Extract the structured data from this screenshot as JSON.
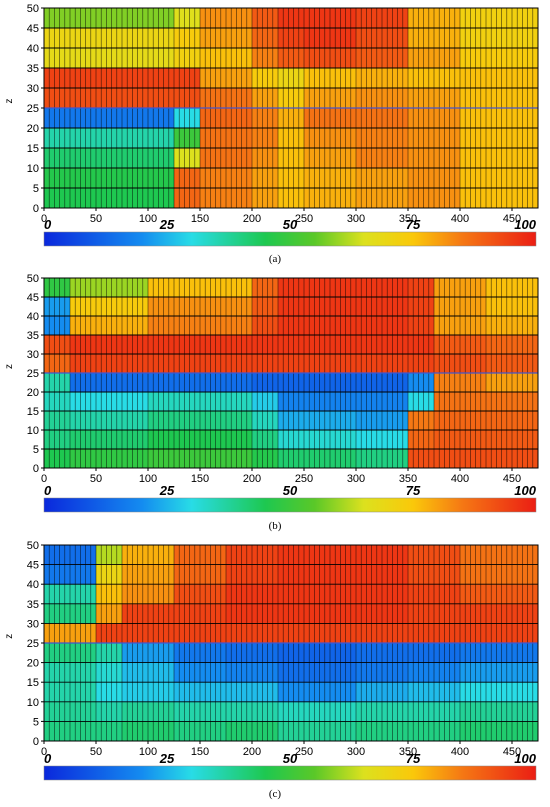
{
  "chart_data": [
    {
      "type": "heatmap",
      "caption": "(a)",
      "ylabel": "z",
      "xlim": [
        0,
        475
      ],
      "ylim": [
        0,
        50
      ],
      "x_ticks": [
        "0",
        "50",
        "100",
        "150",
        "200",
        "250",
        "300",
        "350",
        "400",
        "450"
      ],
      "y_ticks": [
        "0",
        "5",
        "10",
        "15",
        "20",
        "25",
        "30",
        "35",
        "40",
        "45",
        "50"
      ],
      "colorbar": {
        "range": [
          0,
          100
        ],
        "ticks": [
          "0",
          "25",
          "50",
          "75",
          "100"
        ]
      },
      "grid": "on",
      "x_bins": [
        0,
        125,
        150,
        200,
        225,
        250,
        300,
        350,
        400,
        475
      ],
      "rows": [
        {
          "z": [
            0,
            5
          ],
          "values": [
            45,
            88,
            84,
            80,
            76,
            78,
            80,
            82,
            76
          ]
        },
        {
          "z": [
            5,
            10
          ],
          "values": [
            46,
            88,
            84,
            80,
            76,
            78,
            80,
            82,
            76
          ]
        },
        {
          "z": [
            10,
            15
          ],
          "values": [
            42,
            65,
            86,
            82,
            76,
            80,
            84,
            82,
            76
          ]
        },
        {
          "z": [
            15,
            20
          ],
          "values": [
            36,
            50,
            86,
            84,
            76,
            82,
            84,
            82,
            76
          ]
        },
        {
          "z": [
            20,
            25
          ],
          "values": [
            16,
            30,
            88,
            84,
            78,
            86,
            86,
            82,
            76
          ]
        },
        {
          "z": [
            25,
            30
          ],
          "values": [
            92,
            92,
            86,
            80,
            74,
            80,
            82,
            80,
            76
          ]
        },
        {
          "z": [
            30,
            35
          ],
          "values": [
            94,
            94,
            80,
            74,
            70,
            76,
            78,
            76,
            76
          ]
        },
        {
          "z": [
            35,
            40
          ],
          "values": [
            68,
            72,
            76,
            84,
            90,
            92,
            90,
            80,
            74
          ]
        },
        {
          "z": [
            40,
            45
          ],
          "values": [
            70,
            74,
            80,
            88,
            94,
            96,
            92,
            78,
            72
          ]
        },
        {
          "z": [
            45,
            50
          ],
          "values": [
            58,
            66,
            82,
            90,
            96,
            96,
            94,
            78,
            72
          ]
        }
      ]
    },
    {
      "type": "heatmap",
      "caption": "(b)",
      "ylabel": "z",
      "xlim": [
        0,
        475
      ],
      "ylim": [
        0,
        50
      ],
      "x_ticks": [
        "0",
        "50",
        "100",
        "150",
        "200",
        "250",
        "300",
        "350",
        "400",
        "450"
      ],
      "y_ticks": [
        "0",
        "5",
        "10",
        "15",
        "20",
        "25",
        "30",
        "35",
        "40",
        "45",
        "50"
      ],
      "colorbar": {
        "range": [
          0,
          100
        ],
        "ticks": [
          "0",
          "25",
          "50",
          "75",
          "100"
        ]
      },
      "grid": "on",
      "x_bins": [
        0,
        25,
        100,
        200,
        225,
        300,
        350,
        375,
        425,
        475
      ],
      "rows": [
        {
          "z": [
            0,
            5
          ],
          "values": [
            45,
            48,
            50,
            46,
            42,
            40,
            92,
            92,
            92
          ]
        },
        {
          "z": [
            5,
            10
          ],
          "values": [
            40,
            42,
            45,
            40,
            32,
            30,
            88,
            90,
            90
          ]
        },
        {
          "z": [
            10,
            15
          ],
          "values": [
            38,
            36,
            40,
            34,
            24,
            22,
            85,
            88,
            88
          ]
        },
        {
          "z": [
            15,
            20
          ],
          "values": [
            34,
            30,
            34,
            28,
            18,
            18,
            30,
            86,
            86
          ]
        },
        {
          "z": [
            20,
            25
          ],
          "values": [
            36,
            14,
            14,
            12,
            12,
            12,
            20,
            84,
            80
          ]
        },
        {
          "z": [
            25,
            30
          ],
          "values": [
            88,
            94,
            94,
            94,
            94,
            94,
            94,
            92,
            90
          ]
        },
        {
          "z": [
            30,
            35
          ],
          "values": [
            92,
            96,
            96,
            96,
            96,
            96,
            96,
            90,
            88
          ]
        },
        {
          "z": [
            35,
            40
          ],
          "values": [
            20,
            78,
            84,
            92,
            96,
            96,
            94,
            80,
            78
          ]
        },
        {
          "z": [
            40,
            45
          ],
          "values": [
            22,
            74,
            82,
            90,
            96,
            96,
            94,
            80,
            76
          ]
        },
        {
          "z": [
            45,
            50
          ],
          "values": [
            48,
            60,
            76,
            88,
            96,
            96,
            94,
            80,
            76
          ]
        }
      ]
    },
    {
      "type": "heatmap",
      "caption": "(c)",
      "ylabel": "z",
      "xlim": [
        0,
        475
      ],
      "ylim": [
        0,
        50
      ],
      "x_ticks": [
        "0",
        "50",
        "100",
        "150",
        "200",
        "250",
        "300",
        "350",
        "400",
        "450"
      ],
      "y_ticks": [
        "0",
        "5",
        "10",
        "15",
        "20",
        "25",
        "30",
        "35",
        "40",
        "45",
        "50"
      ],
      "colorbar": {
        "range": [
          0,
          100
        ],
        "ticks": [
          "0",
          "25",
          "50",
          "75",
          "100"
        ]
      },
      "grid": "on",
      "x_bins": [
        0,
        50,
        75,
        125,
        175,
        225,
        300,
        350,
        400,
        475
      ],
      "rows": [
        {
          "z": [
            0,
            5
          ],
          "values": [
            40,
            40,
            42,
            40,
            42,
            38,
            40,
            40,
            42
          ]
        },
        {
          "z": [
            5,
            10
          ],
          "values": [
            38,
            36,
            38,
            36,
            36,
            34,
            36,
            36,
            38
          ]
        },
        {
          "z": [
            10,
            15
          ],
          "values": [
            36,
            30,
            28,
            26,
            26,
            20,
            24,
            26,
            30
          ]
        },
        {
          "z": [
            15,
            20
          ],
          "values": [
            36,
            32,
            26,
            20,
            18,
            14,
            16,
            18,
            22
          ]
        },
        {
          "z": [
            20,
            25
          ],
          "values": [
            40,
            36,
            22,
            16,
            14,
            12,
            14,
            14,
            16
          ]
        },
        {
          "z": [
            25,
            30
          ],
          "values": [
            80,
            94,
            94,
            94,
            94,
            94,
            94,
            94,
            94
          ]
        },
        {
          "z": [
            30,
            35
          ],
          "values": [
            40,
            80,
            94,
            94,
            96,
            96,
            96,
            94,
            94
          ]
        },
        {
          "z": [
            35,
            40
          ],
          "values": [
            36,
            76,
            82,
            92,
            96,
            96,
            96,
            94,
            90
          ]
        },
        {
          "z": [
            40,
            45
          ],
          "values": [
            16,
            70,
            80,
            88,
            94,
            96,
            96,
            92,
            86
          ]
        },
        {
          "z": [
            45,
            50
          ],
          "values": [
            14,
            62,
            78,
            88,
            94,
            96,
            96,
            92,
            86
          ]
        }
      ]
    }
  ]
}
